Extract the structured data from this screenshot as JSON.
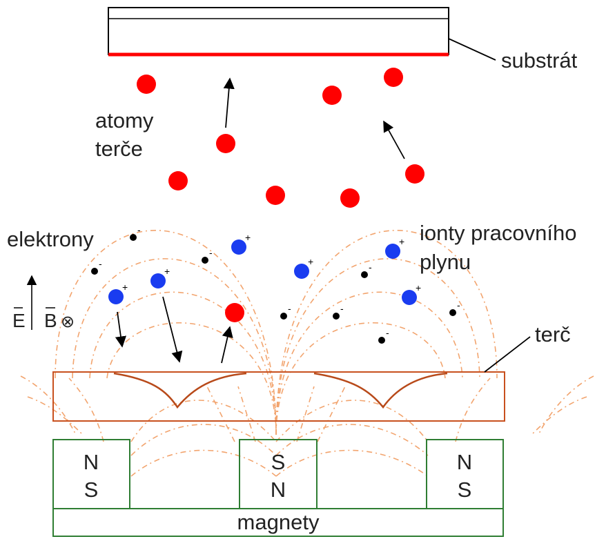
{
  "labels": {
    "substrate": "substrát",
    "target_atoms_line1": "atomy",
    "target_atoms_line2": "terče",
    "electrons": "elektrony",
    "ions_line1": "ionty pracovního",
    "ions_line2": "plynu",
    "e_field": "E",
    "b_field": "B",
    "b_direction_symbol": "⊗",
    "target": "terč",
    "magnets": "magnety",
    "plus_sign": "+",
    "minus_sign": "-"
  },
  "magnets": [
    {
      "top_pole": "N",
      "bottom_pole": "S"
    },
    {
      "top_pole": "S",
      "bottom_pole": "N"
    },
    {
      "top_pole": "N",
      "bottom_pole": "S"
    }
  ],
  "colors": {
    "target_atom": "#ff0000",
    "ion": "#1a3cf0",
    "electron": "#000000",
    "target_outline": "#c8501e",
    "erosion_profile": "#b84a1a",
    "field_lines": "#f2a46e",
    "magnet_outline": "#2e7d32",
    "substrate_film": "#ff0000"
  }
}
